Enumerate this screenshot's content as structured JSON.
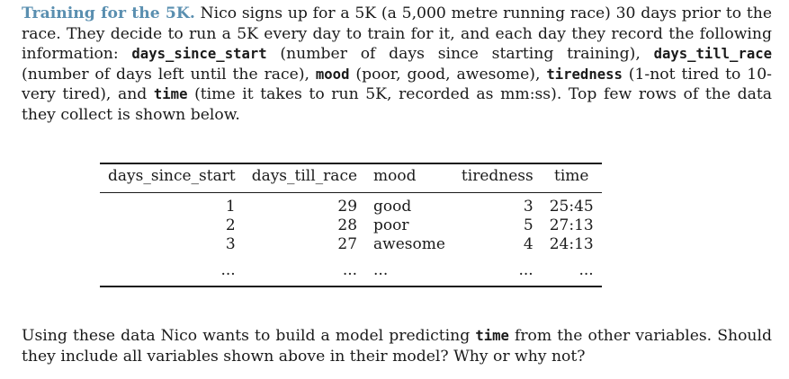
{
  "intro": {
    "title": "Training for the 5K.",
    "t1": " Nico signs up for a 5K (a 5,000 metre running race) 30 days prior to the race. They decide to run a 5K every day to train for it, and each day they record the following information: ",
    "v1": "days_since_start",
    "t2": " (number of days since starting training), ",
    "v2": "days_till_race",
    "t3": " (number of days left until the race), ",
    "v3": "mood",
    "t4": " (poor, good, awesome), ",
    "v4": "tiredness",
    "t5": " (1-not tired to 10-very tired), and ",
    "v5": "time",
    "t6": " (time it takes to run 5K, recorded as mm:ss). Top few rows of the data they collect is shown below."
  },
  "table": {
    "headers": [
      "days_since_start",
      "days_till_race",
      "mood",
      "tiredness",
      "time"
    ],
    "rows": [
      [
        "1",
        "29",
        "good",
        "3",
        "25:45"
      ],
      [
        "2",
        "28",
        "poor",
        "5",
        "27:13"
      ],
      [
        "3",
        "27",
        "awesome",
        "4",
        "24:13"
      ],
      [
        "...",
        "...",
        "...",
        "...",
        "..."
      ]
    ]
  },
  "question": {
    "t1": "Using these data Nico wants to build a model predicting ",
    "v1": "time",
    "t2": " from the other variables. Should they include all variables shown above in their model? Why or why not?"
  }
}
